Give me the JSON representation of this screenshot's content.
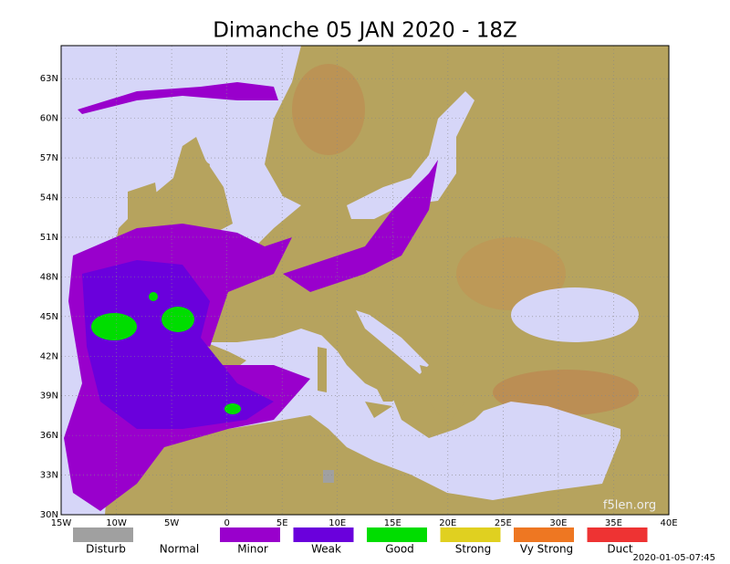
{
  "title": "Dimanche 05 JAN 2020 - 18Z",
  "map": {
    "lon_range": [
      -15,
      40
    ],
    "lat_range": [
      30,
      65.5
    ],
    "lon_ticks": [
      {
        "value": -15,
        "label": "15W"
      },
      {
        "value": -10,
        "label": "10W"
      },
      {
        "value": -5,
        "label": "5W"
      },
      0,
      {
        "value": 5,
        "label": "5E"
      },
      {
        "value": 10,
        "label": "10E"
      },
      {
        "value": 15,
        "label": "15E"
      },
      {
        "value": 20,
        "label": "20E"
      },
      {
        "value": 25,
        "label": "25E"
      },
      {
        "value": 30,
        "label": "30E"
      },
      {
        "value": 35,
        "label": "35E"
      },
      {
        "value": 40,
        "label": "40E"
      }
    ],
    "lat_ticks": [
      {
        "value": 30,
        "label": "30N"
      },
      {
        "value": 33,
        "label": "33N"
      },
      {
        "value": 36,
        "label": "36N"
      },
      {
        "value": 39,
        "label": "39N"
      },
      {
        "value": 42,
        "label": "42N"
      },
      {
        "value": 45,
        "label": "45N"
      },
      {
        "value": 48,
        "label": "48N"
      },
      {
        "value": 51,
        "label": "51N"
      },
      {
        "value": 54,
        "label": "54N"
      },
      {
        "value": 57,
        "label": "57N"
      },
      {
        "value": 60,
        "label": "60N"
      },
      {
        "value": 63,
        "label": "63N"
      }
    ],
    "watermark": "f5len.org"
  },
  "legend": [
    {
      "label": "Disturb",
      "color": "#a0a0a0"
    },
    {
      "label": "Normal",
      "color": "#ffffff"
    },
    {
      "label": "Minor",
      "color": "#9900cc"
    },
    {
      "label": "Weak",
      "color": "#6a00dc"
    },
    {
      "label": "Good",
      "color": "#00dd00"
    },
    {
      "label": "Strong",
      "color": "#e0d020"
    },
    {
      "label": "Vy Strong",
      "color": "#ee7722"
    },
    {
      "label": "Duct",
      "color": "#ee3333"
    }
  ],
  "timestamp": "2020-01-05-07:45"
}
